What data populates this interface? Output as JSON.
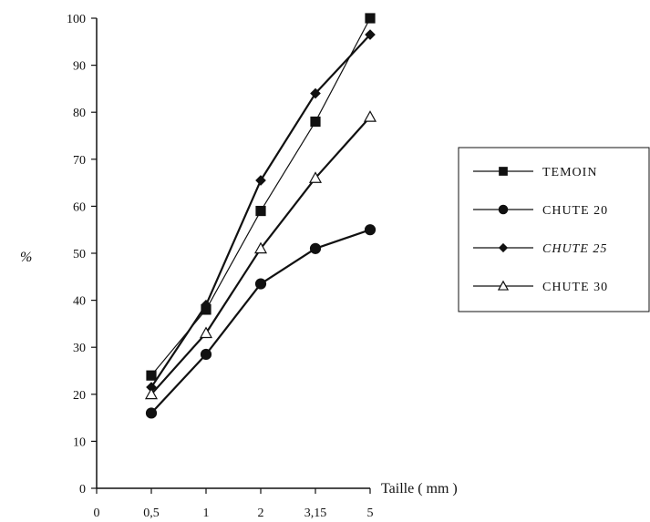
{
  "chart_data": {
    "type": "line",
    "title": "",
    "xlabel": "Taille ( mm )",
    "ylabel": "%",
    "categories": [
      "0",
      "0,5",
      "1",
      "2",
      "3,15",
      "5"
    ],
    "ylim": [
      0,
      100
    ],
    "yticks": [
      "0",
      "10",
      "20",
      "30",
      "40",
      "50",
      "60",
      "70",
      "80",
      "90",
      "100"
    ],
    "grid": false,
    "legend_position": "right",
    "series": [
      {
        "name": "TEMOIN",
        "marker": "square",
        "values": [
          null,
          24,
          38,
          59,
          78,
          100
        ]
      },
      {
        "name": "CHUTE 20",
        "marker": "circle",
        "values": [
          null,
          16,
          28.5,
          43.5,
          51,
          55
        ]
      },
      {
        "name": "CHUTE 25",
        "marker": "diamond",
        "values": [
          null,
          21.5,
          39,
          65.5,
          84,
          96.5
        ]
      },
      {
        "name": "CHUTE 30",
        "marker": "triangle",
        "values": [
          null,
          20,
          33,
          51,
          66,
          79
        ]
      }
    ]
  }
}
